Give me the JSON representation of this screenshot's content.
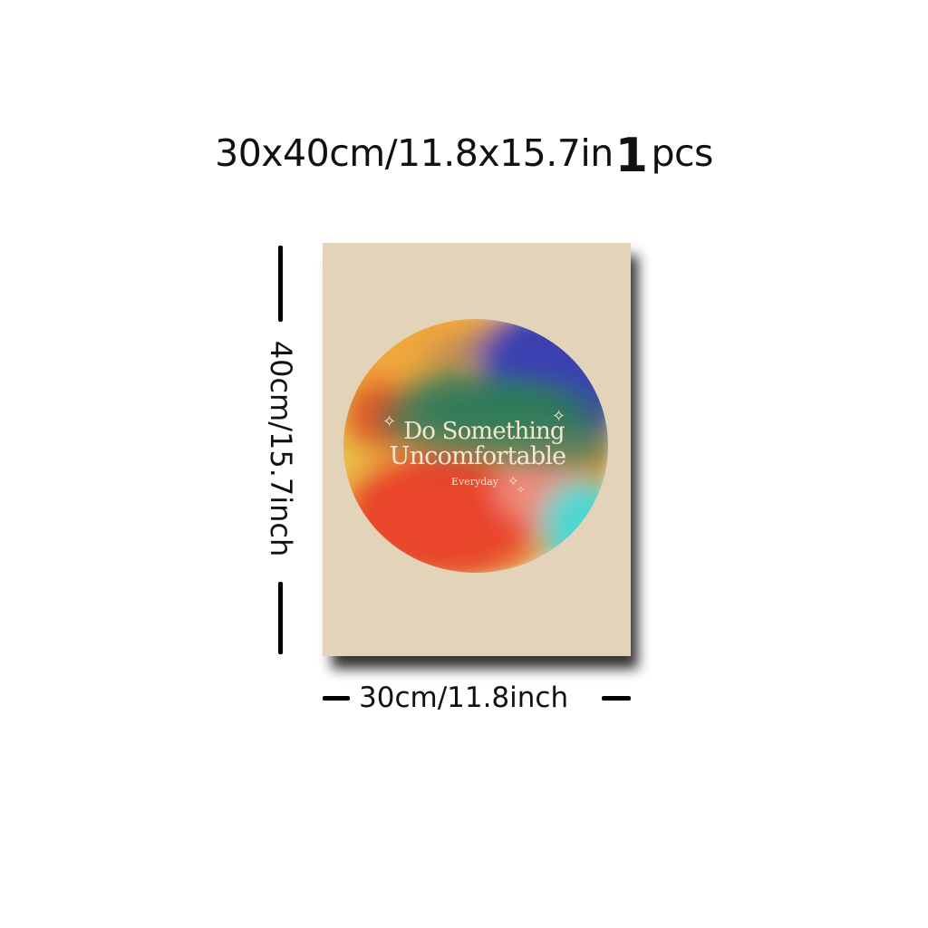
{
  "header": {
    "size_text": "30x40cm/11.8x15.7in",
    "quantity_number": "1",
    "quantity_unit": "pcs"
  },
  "poster": {
    "background_color": "#e3d3b9",
    "title_line1": "Do Something",
    "title_line2": "Uncomfortable",
    "subtitle": "Everyday",
    "gradient_colors": [
      "#f0a83a",
      "#3b3fb0",
      "#2e7a5a",
      "#e8442a",
      "#f08a7a",
      "#4fd6d0",
      "#e9c24a"
    ]
  },
  "dimensions": {
    "height_label": "40cm/15.7inch",
    "width_label": "30cm/11.8inch"
  }
}
